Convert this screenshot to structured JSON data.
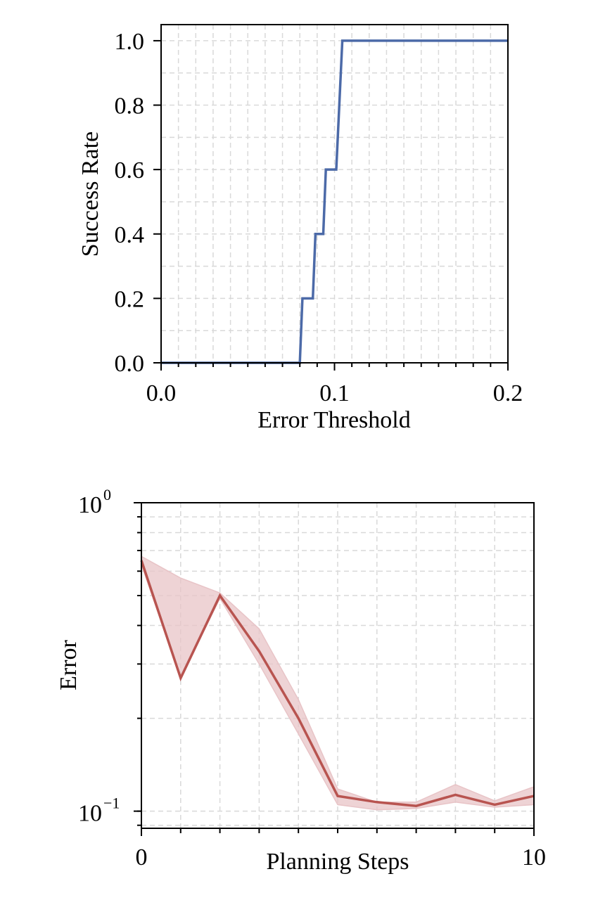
{
  "chart_data": [
    {
      "type": "line",
      "title": "",
      "xlabel": "Error Threshold",
      "ylabel": "Success Rate",
      "xlim": [
        0,
        0.2
      ],
      "ylim": [
        0,
        1.05
      ],
      "x_ticks": [
        0.0,
        0.1,
        0.2
      ],
      "x_tick_labels": [
        "0.0",
        "0.1",
        "0.2"
      ],
      "y_ticks": [
        0.0,
        0.2,
        0.4,
        0.6,
        0.8,
        1.0
      ],
      "y_tick_labels": [
        "0.0",
        "0.2",
        "0.4",
        "0.6",
        "0.8",
        "1.0"
      ],
      "grid": true,
      "step": true,
      "color": "#4c6aa8",
      "series": [
        {
          "x": [
            0.0,
            0.08,
            0.0815,
            0.0875,
            0.089,
            0.0935,
            0.095,
            0.0995,
            0.101,
            0.1045,
            0.106,
            0.2
          ],
          "y": [
            0.0,
            0.0,
            0.2,
            0.2,
            0.4,
            0.4,
            0.6,
            0.6,
            0.6,
            1.0,
            1.0,
            1.0
          ]
        }
      ]
    },
    {
      "type": "line",
      "title": "",
      "xlabel": "Planning Steps",
      "ylabel": "Error",
      "xlim": [
        0,
        10
      ],
      "ylim": [
        0.088,
        1.0
      ],
      "y_scale": "log",
      "x_tick_labels": [
        "0",
        "10"
      ],
      "y_tick_labels": [
        {
          "base": "10",
          "exponent": "0"
        },
        {
          "base": "10",
          "exponent": "−1"
        }
      ],
      "grid": true,
      "color": "#b85450",
      "band_color": "#e8c4c7",
      "series": [
        {
          "x": [
            0,
            1,
            2,
            3,
            4,
            5,
            6,
            7,
            8,
            9,
            10
          ],
          "y": [
            0.65,
            0.27,
            0.5,
            0.33,
            0.2,
            0.112,
            0.107,
            0.104,
            0.113,
            0.105,
            0.112
          ],
          "upper": [
            0.67,
            0.57,
            0.51,
            0.39,
            0.23,
            0.118,
            0.107,
            0.107,
            0.122,
            0.108,
            0.12
          ],
          "lower": [
            0.63,
            0.27,
            0.49,
            0.3,
            0.178,
            0.105,
            0.101,
            0.102,
            0.107,
            0.103,
            0.105
          ]
        }
      ]
    }
  ]
}
